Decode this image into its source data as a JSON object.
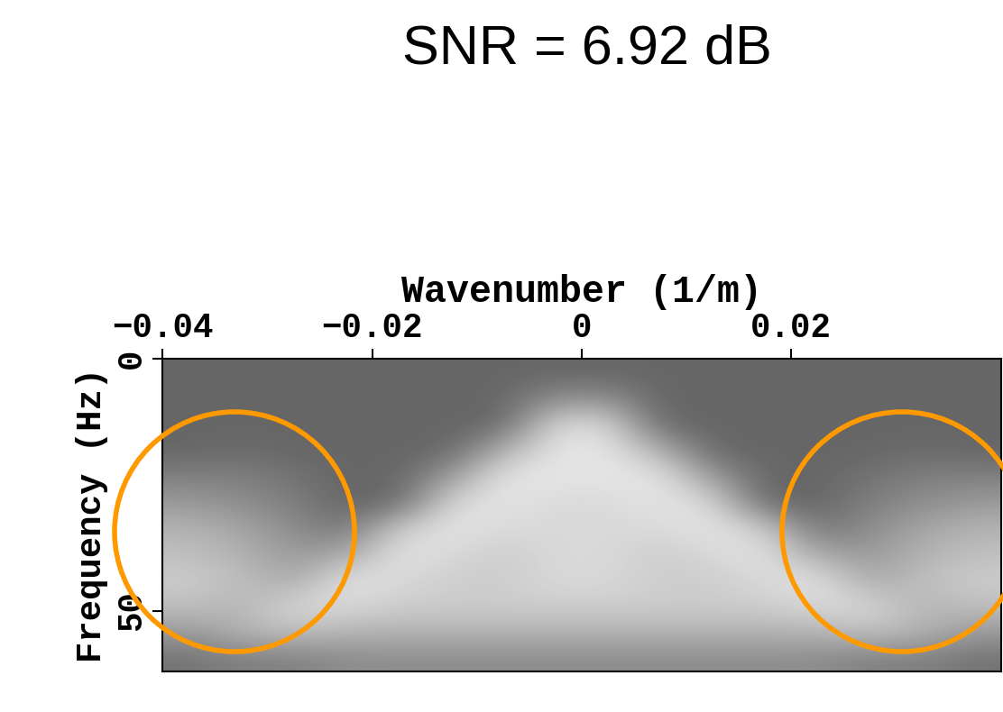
{
  "chart_data": {
    "type": "heatmap",
    "title": "SNR = 6.92 dB",
    "x_label": "Wavenumber (1/m)",
    "y_label": "Frequency (Hz)",
    "xlim": [
      -0.04,
      0.04
    ],
    "xticks": [
      {
        "value": -0.04,
        "label": "−0.04"
      },
      {
        "value": -0.02,
        "label": "−0.02"
      },
      0,
      0.02
    ],
    "ylim": [
      62,
      0
    ],
    "yticks": [
      0,
      50
    ],
    "color": "gray",
    "color_range": [
      0,
      1
    ],
    "cells": [
      [
        0.4,
        0.4,
        0.4,
        0.4,
        0.4,
        0.4,
        0.4,
        0.4,
        0.4,
        0.4,
        0.4,
        0.4,
        0.4,
        0.4,
        0.4,
        0.4
      ],
      [
        0.4,
        0.4,
        0.4,
        0.4,
        0.4,
        0.4,
        0.4,
        0.55,
        0.55,
        0.4,
        0.4,
        0.4,
        0.4,
        0.4,
        0.4,
        0.4
      ],
      [
        0.4,
        0.4,
        0.4,
        0.4,
        0.4,
        0.4,
        0.4,
        0.85,
        0.85,
        0.4,
        0.4,
        0.4,
        0.4,
        0.4,
        0.4,
        0.4
      ],
      [
        0.4,
        0.42,
        0.4,
        0.4,
        0.4,
        0.4,
        0.7,
        0.9,
        0.9,
        0.7,
        0.4,
        0.4,
        0.4,
        0.4,
        0.42,
        0.4
      ],
      [
        0.5,
        0.5,
        0.45,
        0.4,
        0.4,
        0.6,
        0.9,
        0.9,
        0.9,
        0.9,
        0.6,
        0.4,
        0.4,
        0.45,
        0.5,
        0.5
      ],
      [
        0.6,
        0.55,
        0.5,
        0.4,
        0.4,
        0.85,
        0.9,
        0.85,
        0.85,
        0.9,
        0.85,
        0.4,
        0.4,
        0.5,
        0.55,
        0.6
      ],
      [
        0.7,
        0.65,
        0.55,
        0.45,
        0.8,
        0.9,
        0.85,
        0.85,
        0.85,
        0.85,
        0.9,
        0.8,
        0.45,
        0.55,
        0.65,
        0.7
      ],
      [
        0.75,
        0.7,
        0.6,
        0.65,
        0.9,
        0.85,
        0.8,
        0.85,
        0.85,
        0.8,
        0.85,
        0.9,
        0.65,
        0.6,
        0.7,
        0.75
      ],
      [
        0.8,
        0.75,
        0.65,
        0.9,
        0.85,
        0.8,
        0.8,
        0.85,
        0.85,
        0.8,
        0.8,
        0.85,
        0.9,
        0.65,
        0.75,
        0.8
      ],
      [
        0.75,
        0.7,
        0.85,
        0.85,
        0.8,
        0.8,
        0.8,
        0.8,
        0.8,
        0.8,
        0.8,
        0.8,
        0.85,
        0.85,
        0.7,
        0.75
      ],
      [
        0.6,
        0.7,
        0.75,
        0.7,
        0.7,
        0.7,
        0.7,
        0.7,
        0.7,
        0.7,
        0.7,
        0.7,
        0.7,
        0.75,
        0.7,
        0.6
      ],
      [
        0.45,
        0.5,
        0.5,
        0.55,
        0.55,
        0.55,
        0.55,
        0.55,
        0.55,
        0.55,
        0.55,
        0.55,
        0.55,
        0.5,
        0.5,
        0.45
      ]
    ]
  }
}
